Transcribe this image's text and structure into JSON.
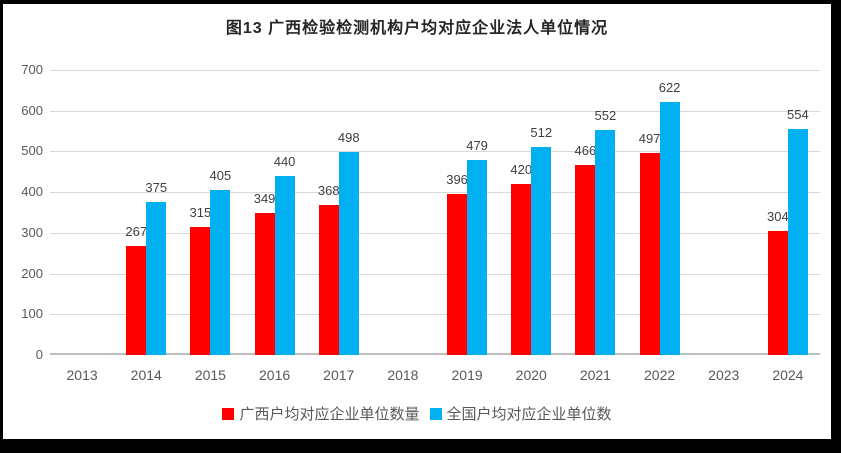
{
  "chart_data": {
    "type": "bar",
    "title": "图13 广西检验检测机构户均对应企业法人单位情况",
    "categories": [
      "2013",
      "2014",
      "2015",
      "2016",
      "2017",
      "2018",
      "2019",
      "2020",
      "2021",
      "2022",
      "2023",
      "2024"
    ],
    "series": [
      {
        "name": "广西户均对应企业单位数量",
        "color": "#FF0000",
        "values": [
          null,
          267,
          315,
          349,
          368,
          null,
          396,
          420,
          466,
          497,
          null,
          304
        ]
      },
      {
        "name": "全国户均对应企业单位数",
        "color": "#00B0F0",
        "values": [
          null,
          375,
          405,
          440,
          498,
          null,
          479,
          512,
          552,
          622,
          null,
          554
        ]
      }
    ],
    "ylim": [
      0,
      700
    ],
    "ytick_step": 100,
    "grid": true,
    "legend_position": "bottom",
    "data_labels": true
  },
  "colors": {
    "series_guangxi": "#FF0000",
    "series_national": "#00B0F0",
    "gridline": "#d9d9d9",
    "axis_line": "#bfbfbf",
    "tick_text": "#595959",
    "data_label_text": "#404040",
    "title_text": "#262626",
    "frame_border": "#000000",
    "background": "#ffffff"
  }
}
